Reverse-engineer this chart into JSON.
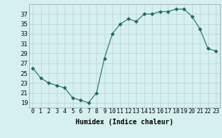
{
  "x": [
    0,
    1,
    2,
    3,
    4,
    5,
    6,
    7,
    8,
    9,
    10,
    11,
    12,
    13,
    14,
    15,
    16,
    17,
    18,
    19,
    20,
    21,
    22,
    23
  ],
  "y": [
    26,
    24,
    23,
    22.5,
    22,
    20,
    19.5,
    19,
    21,
    28,
    33,
    35,
    36,
    35.5,
    37,
    37,
    37.5,
    37.5,
    38,
    38,
    36.5,
    34,
    30,
    29.5
  ],
  "line_color": "#1a6b5a",
  "marker": "D",
  "marker_size": 2.5,
  "bg_color": "#d6f0f0",
  "grid_color": "#c0d8d8",
  "xlabel": "Humidex (Indice chaleur)",
  "xlim": [
    -0.5,
    23.5
  ],
  "ylim": [
    18,
    39
  ],
  "yticks": [
    19,
    21,
    23,
    25,
    27,
    29,
    31,
    33,
    35,
    37
  ],
  "xtick_labels": [
    "0",
    "1",
    "2",
    "3",
    "4",
    "5",
    "6",
    "7",
    "8",
    "9",
    "10",
    "11",
    "12",
    "13",
    "14",
    "15",
    "16",
    "17",
    "18",
    "19",
    "20",
    "21",
    "22",
    "23"
  ],
  "tick_fontsize": 6,
  "label_fontsize": 7
}
